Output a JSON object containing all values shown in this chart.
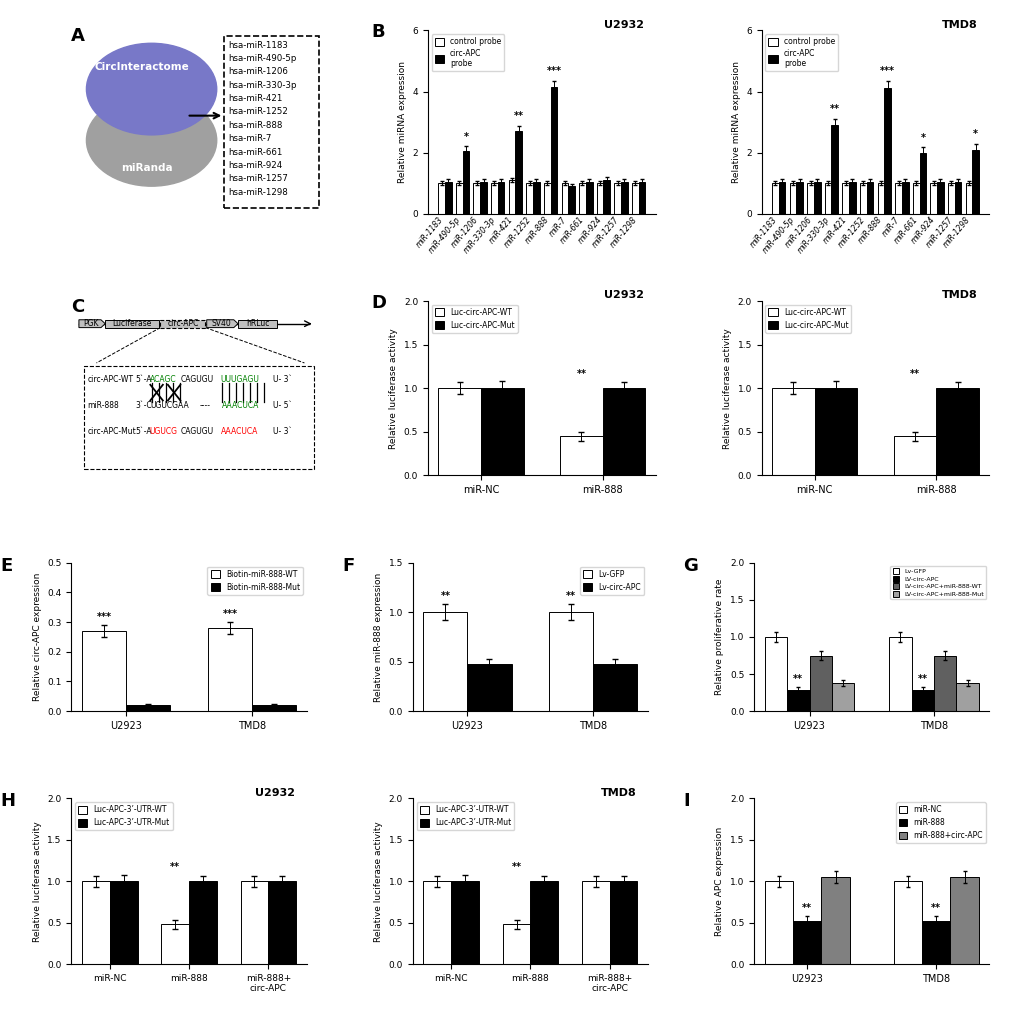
{
  "panel_B_U2932": {
    "categories": [
      "miR-1183",
      "miR-490-5p",
      "miR-1206",
      "miR-330-3p",
      "miR-421",
      "miR-1252",
      "miR-888",
      "miR-7",
      "miR-661",
      "miR-924",
      "miR-1257",
      "miR-1298"
    ],
    "control": [
      1.0,
      1.0,
      1.0,
      1.0,
      1.1,
      1.0,
      1.0,
      1.0,
      1.0,
      1.0,
      1.0,
      1.0
    ],
    "circ_APC": [
      1.05,
      2.05,
      1.05,
      1.05,
      2.7,
      1.05,
      4.15,
      0.9,
      1.05,
      1.1,
      1.05,
      1.05
    ],
    "ctrl_err": [
      0.06,
      0.06,
      0.06,
      0.06,
      0.06,
      0.06,
      0.06,
      0.06,
      0.06,
      0.06,
      0.06,
      0.06
    ],
    "circ_err": [
      0.08,
      0.15,
      0.08,
      0.08,
      0.18,
      0.08,
      0.2,
      0.08,
      0.08,
      0.1,
      0.1,
      0.08
    ],
    "sig": [
      null,
      "*",
      null,
      null,
      "**",
      null,
      "***",
      null,
      null,
      null,
      null,
      null
    ],
    "ylabel": "Relative miRNA expression",
    "title": "U2932",
    "ylim": [
      0,
      6
    ]
  },
  "panel_B_TMD8": {
    "categories": [
      "miR-1183",
      "miR-490-5p",
      "miR-1206",
      "miR-330-3p",
      "miR-421",
      "miR-1252",
      "miR-888",
      "miR-7",
      "miR-661",
      "miR-924",
      "miR-1257",
      "miR-1298"
    ],
    "control": [
      1.0,
      1.0,
      1.0,
      1.0,
      1.0,
      1.0,
      1.0,
      1.0,
      1.0,
      1.0,
      1.0,
      1.0
    ],
    "circ_APC": [
      1.05,
      1.05,
      1.05,
      2.9,
      1.05,
      1.05,
      4.1,
      1.05,
      2.0,
      1.05,
      1.05,
      2.1
    ],
    "ctrl_err": [
      0.06,
      0.06,
      0.06,
      0.06,
      0.06,
      0.06,
      0.06,
      0.06,
      0.06,
      0.06,
      0.06,
      0.06
    ],
    "circ_err": [
      0.08,
      0.08,
      0.08,
      0.2,
      0.08,
      0.08,
      0.25,
      0.08,
      0.18,
      0.08,
      0.08,
      0.18
    ],
    "sig": [
      null,
      null,
      null,
      "**",
      null,
      null,
      "***",
      null,
      "*",
      null,
      null,
      "*"
    ],
    "ylabel": "Relative miRNA expression",
    "title": "TMD8",
    "ylim": [
      0,
      6
    ]
  },
  "panel_D_U2932": {
    "categories": [
      "miR-NC",
      "miR-888"
    ],
    "wt": [
      1.0,
      0.45
    ],
    "mut": [
      1.0,
      1.0
    ],
    "wt_err": [
      0.07,
      0.05
    ],
    "mut_err": [
      0.08,
      0.07
    ],
    "sig": [
      null,
      "**"
    ],
    "ylabel": "Relative luciferase activity",
    "title": "U2932",
    "legend1": "Luc-circ-APC-WT",
    "legend2": "Luc-circ-APC-Mut",
    "ylim": [
      0,
      2.0
    ]
  },
  "panel_D_TMD8": {
    "categories": [
      "miR-NC",
      "miR-888"
    ],
    "wt": [
      1.0,
      0.45
    ],
    "mut": [
      1.0,
      1.0
    ],
    "wt_err": [
      0.07,
      0.05
    ],
    "mut_err": [
      0.08,
      0.07
    ],
    "sig": [
      null,
      "**"
    ],
    "ylabel": "Relative luciferase activity",
    "title": "TMD8",
    "legend1": "Luc-circ-APC-WT",
    "legend2": "Luc-circ-APC-Mut",
    "ylim": [
      0,
      2.0
    ]
  },
  "panel_E": {
    "categories": [
      "U2923",
      "TMD8"
    ],
    "wt": [
      0.27,
      0.28
    ],
    "mut": [
      0.02,
      0.02
    ],
    "wt_err": [
      0.02,
      0.02
    ],
    "mut_err": [
      0.005,
      0.005
    ],
    "sig": [
      "***",
      "***"
    ],
    "ylabel": "Relative circ-APC expression",
    "legend1": "Biotin-miR-888-WT",
    "legend2": "Biotin-miR-888-Mut",
    "ylim": [
      0,
      0.5
    ]
  },
  "panel_F": {
    "categories": [
      "U2923",
      "TMD8"
    ],
    "lv_gfp": [
      1.0,
      1.0
    ],
    "lv_circ": [
      0.48,
      0.48
    ],
    "gfp_err": [
      0.08,
      0.08
    ],
    "circ_err": [
      0.05,
      0.05
    ],
    "sig": [
      "**",
      "**"
    ],
    "ylabel": "Relative miR-888 expression",
    "legend1": "Lv-GFP",
    "legend2": "Lv-circ-APC",
    "ylim": [
      0,
      1.5
    ]
  },
  "panel_G": {
    "categories": [
      "U2923",
      "TMD8"
    ],
    "lv_gfp": [
      1.0,
      1.0
    ],
    "lv_circ": [
      0.28,
      0.28
    ],
    "lv_circ_wt": [
      0.75,
      0.75
    ],
    "lv_circ_mut": [
      0.38,
      0.38
    ],
    "gfp_err": [
      0.07,
      0.07
    ],
    "circ_err": [
      0.04,
      0.04
    ],
    "wt_err": [
      0.06,
      0.06
    ],
    "mut_err": [
      0.04,
      0.04
    ],
    "sig": [
      "**",
      "**"
    ],
    "ylabel": "Relative proliferative rate",
    "legend1": "Lv-GFP",
    "legend2": "LV-circ-APC",
    "legend3": "LV-circ-APC+miR-888-WT",
    "legend4": "LV-circ-APC+miR-888-Mut",
    "ylim": [
      0,
      2.0
    ]
  },
  "panel_H_U2932": {
    "categories": [
      "miR-NC",
      "miR-888",
      "miR-888+\ncirc-APC"
    ],
    "wt": [
      1.0,
      0.48,
      1.0
    ],
    "mut": [
      1.0,
      1.0,
      1.0
    ],
    "wt_err": [
      0.07,
      0.05,
      0.07
    ],
    "mut_err": [
      0.08,
      0.07,
      0.07
    ],
    "sig": [
      null,
      "**",
      null
    ],
    "ylabel": "Relative luciferase activity",
    "title": "U2932",
    "legend1": "Luc-APC-3’-UTR-WT",
    "legend2": "Luc-APC-3’-UTR-Mut",
    "ylim": [
      0,
      2.0
    ]
  },
  "panel_H_TMD8": {
    "categories": [
      "miR-NC",
      "miR-888",
      "miR-888+\ncirc-APC"
    ],
    "wt": [
      1.0,
      0.48,
      1.0
    ],
    "mut": [
      1.0,
      1.0,
      1.0
    ],
    "wt_err": [
      0.07,
      0.05,
      0.07
    ],
    "mut_err": [
      0.08,
      0.07,
      0.07
    ],
    "sig": [
      null,
      "**",
      null
    ],
    "ylabel": "Relative luciferase activity",
    "title": "TMD8",
    "legend1": "Luc-APC-3’-UTR-WT",
    "legend2": "Luc-APC-3’-UTR-Mut",
    "ylim": [
      0,
      2.0
    ]
  },
  "panel_I": {
    "categories": [
      "U2923",
      "TMD8"
    ],
    "mir_nc": [
      1.0,
      1.0
    ],
    "mir_888": [
      0.52,
      0.52
    ],
    "mir_888_circ": [
      1.05,
      1.05
    ],
    "nc_err": [
      0.07,
      0.07
    ],
    "mir_err": [
      0.06,
      0.06
    ],
    "circ_err2": [
      0.07,
      0.07
    ],
    "sig": [
      "**",
      "**"
    ],
    "ylabel": "Relative APC expression",
    "legend1": "miR-NC",
    "legend2": "miR-888",
    "legend3": "miR-888+circ-APC",
    "ylim": [
      0,
      2.0
    ]
  },
  "miRNA_list": [
    "hsa-miR-1183",
    "hsa-miR-490-5p",
    "hsa-miR-1206",
    "hsa-miR-330-3p",
    "hsa-miR-421",
    "hsa-miR-1252",
    "hsa-miR-888",
    "hsa-miR-7",
    "hsa-miR-661",
    "hsa-miR-924",
    "hsa-miR-1257",
    "hsa-miR-1298"
  ]
}
